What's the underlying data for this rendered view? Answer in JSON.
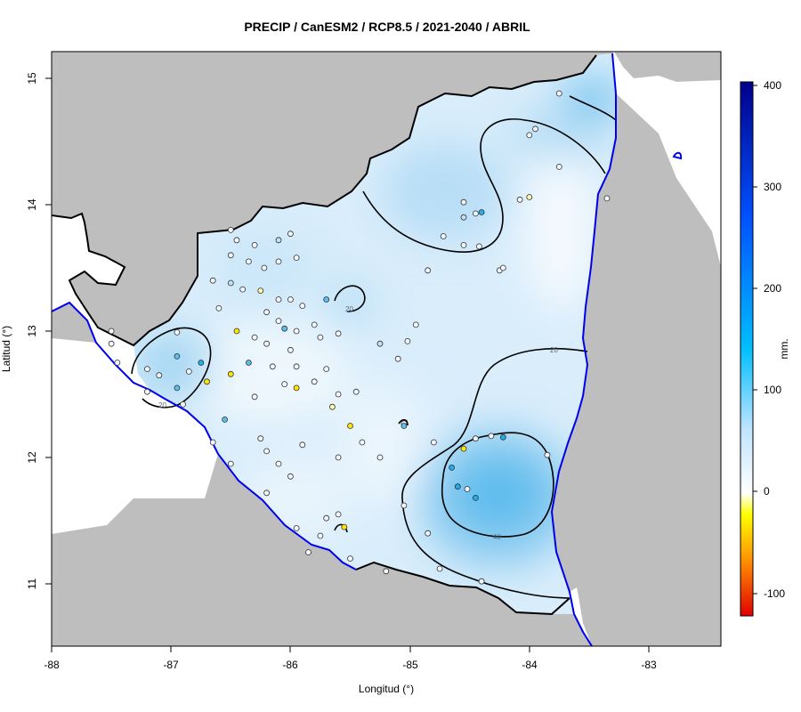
{
  "title": "PRECIP / CanESM2 / RCP8.5 / 2021-2040 / ABRIL",
  "x_axis": {
    "label": "Longitud (°)",
    "ticks": [
      "-88",
      "-87",
      "-86",
      "-85",
      "-84",
      "-83"
    ],
    "range": [
      -88,
      -82.4
    ]
  },
  "y_axis": {
    "label": "Latitud (°)",
    "ticks": [
      "11",
      "12",
      "13",
      "14",
      "15"
    ],
    "range": [
      10.5,
      15.2
    ]
  },
  "colorbar": {
    "unit": "mm.",
    "ticks": [
      "-100",
      "0",
      "100",
      "200",
      "300",
      "400"
    ],
    "range": [
      -120,
      400
    ],
    "colors": [
      "#e00000",
      "#ff8c00",
      "#ffff00",
      "#ffffff",
      "#bfe4ff",
      "#00bfff",
      "#0050ff",
      "#00008b"
    ]
  },
  "contour_labels": [
    "20",
    "20",
    "20",
    "40"
  ],
  "colors": {
    "land_gray": "#bebebe",
    "coast_blue": "#0000ee",
    "border_black": "#000000",
    "field_light": "#d6ecfb",
    "field_mid": "#9fd4f4",
    "field_strong": "#6cc3ef"
  },
  "chart_data": {
    "type": "heatmap",
    "variable": "PRECIP",
    "model": "CanESM2",
    "scenario": "RCP8.5",
    "period": "2021-2040",
    "month": "ABRIL",
    "unit": "mm.",
    "xlabel": "Longitud (°)",
    "ylabel": "Latitud (°)",
    "xlim": [
      -88,
      -82.4
    ],
    "ylim": [
      10.5,
      15.2
    ],
    "colorbar_range": [
      -120,
      400
    ],
    "contour_levels": [
      20,
      40
    ],
    "stations": [
      {
        "lon": -86.5,
        "lat": 13.8,
        "value": 5
      },
      {
        "lon": -86.45,
        "lat": 13.72,
        "value": 8
      },
      {
        "lon": -86.3,
        "lat": 13.68,
        "value": 10
      },
      {
        "lon": -86.1,
        "lat": 13.72,
        "value": 40
      },
      {
        "lon": -86.0,
        "lat": 13.77,
        "value": 10
      },
      {
        "lon": -86.5,
        "lat": 13.6,
        "value": 20
      },
      {
        "lon": -86.35,
        "lat": 13.55,
        "value": 10
      },
      {
        "lon": -86.22,
        "lat": 13.5,
        "value": 12
      },
      {
        "lon": -86.1,
        "lat": 13.55,
        "value": 8
      },
      {
        "lon": -85.95,
        "lat": 13.58,
        "value": 10
      },
      {
        "lon": -86.65,
        "lat": 13.4,
        "value": 20
      },
      {
        "lon": -86.5,
        "lat": 13.38,
        "value": 60
      },
      {
        "lon": -86.4,
        "lat": 13.33,
        "value": 10
      },
      {
        "lon": -86.25,
        "lat": 13.32,
        "value": -10
      },
      {
        "lon": -86.1,
        "lat": 13.25,
        "value": 10
      },
      {
        "lon": -86.0,
        "lat": 13.25,
        "value": 15
      },
      {
        "lon": -85.9,
        "lat": 13.2,
        "value": 10
      },
      {
        "lon": -85.7,
        "lat": 13.25,
        "value": 100
      },
      {
        "lon": -86.6,
        "lat": 13.18,
        "value": 5
      },
      {
        "lon": -86.2,
        "lat": 13.15,
        "value": 10
      },
      {
        "lon": -86.1,
        "lat": 13.08,
        "value": 10
      },
      {
        "lon": -86.05,
        "lat": 13.02,
        "value": 120
      },
      {
        "lon": -85.95,
        "lat": 13.0,
        "value": 10
      },
      {
        "lon": -85.8,
        "lat": 13.05,
        "value": 8
      },
      {
        "lon": -86.45,
        "lat": 13.0,
        "value": -40
      },
      {
        "lon": -86.3,
        "lat": 12.95,
        "value": 10
      },
      {
        "lon": -86.2,
        "lat": 12.9,
        "value": 10
      },
      {
        "lon": -86.0,
        "lat": 12.85,
        "value": 8
      },
      {
        "lon": -85.75,
        "lat": 12.95,
        "value": 10
      },
      {
        "lon": -85.6,
        "lat": 12.98,
        "value": 8
      },
      {
        "lon": -86.35,
        "lat": 12.75,
        "value": 80
      },
      {
        "lon": -86.15,
        "lat": 12.72,
        "value": 10
      },
      {
        "lon": -85.95,
        "lat": 12.72,
        "value": 10
      },
      {
        "lon": -85.7,
        "lat": 12.7,
        "value": 10
      },
      {
        "lon": -86.5,
        "lat": 12.66,
        "value": -25
      },
      {
        "lon": -86.05,
        "lat": 12.58,
        "value": 10
      },
      {
        "lon": -85.95,
        "lat": 12.55,
        "value": -20
      },
      {
        "lon": -85.8,
        "lat": 12.6,
        "value": 15
      },
      {
        "lon": -85.6,
        "lat": 12.5,
        "value": 8
      },
      {
        "lon": -85.45,
        "lat": 12.52,
        "value": 10
      },
      {
        "lon": -86.3,
        "lat": 12.48,
        "value": 10
      },
      {
        "lon": -85.65,
        "lat": 12.4,
        "value": -10
      },
      {
        "lon": -85.5,
        "lat": 12.25,
        "value": -30
      },
      {
        "lon": -85.05,
        "lat": 12.27,
        "value": 20
      },
      {
        "lon": -85.05,
        "lat": 12.25,
        "value": 120
      },
      {
        "lon": -86.25,
        "lat": 12.15,
        "value": 10
      },
      {
        "lon": -86.2,
        "lat": 12.05,
        "value": 10
      },
      {
        "lon": -86.1,
        "lat": 11.95,
        "value": 10
      },
      {
        "lon": -86.2,
        "lat": 11.72,
        "value": 10
      },
      {
        "lon": -86.0,
        "lat": 11.85,
        "value": 8
      },
      {
        "lon": -85.9,
        "lat": 12.1,
        "value": 10
      },
      {
        "lon": -85.6,
        "lat": 12.0,
        "value": 10
      },
      {
        "lon": -85.4,
        "lat": 12.12,
        "value": 10
      },
      {
        "lon": -85.25,
        "lat": 12.0,
        "value": 10
      },
      {
        "lon": -84.8,
        "lat": 12.12,
        "value": 10
      },
      {
        "lon": -84.55,
        "lat": 12.07,
        "value": -30
      },
      {
        "lon": -84.45,
        "lat": 12.15,
        "value": 10
      },
      {
        "lon": -84.32,
        "lat": 12.17,
        "value": 10
      },
      {
        "lon": -84.22,
        "lat": 12.16,
        "value": 200
      },
      {
        "lon": -84.65,
        "lat": 11.92,
        "value": 150
      },
      {
        "lon": -84.6,
        "lat": 11.77,
        "value": 150
      },
      {
        "lon": -84.52,
        "lat": 11.75,
        "value": 20
      },
      {
        "lon": -84.45,
        "lat": 11.68,
        "value": 180
      },
      {
        "lon": -85.05,
        "lat": 11.62,
        "value": 10
      },
      {
        "lon": -84.85,
        "lat": 11.4,
        "value": 15
      },
      {
        "lon": -84.75,
        "lat": 11.12,
        "value": 10
      },
      {
        "lon": -84.4,
        "lat": 11.02,
        "value": 10
      },
      {
        "lon": -85.55,
        "lat": 11.45,
        "value": -35
      },
      {
        "lon": -85.6,
        "lat": 11.55,
        "value": 10
      },
      {
        "lon": -85.7,
        "lat": 11.52,
        "value": 10
      },
      {
        "lon": -85.75,
        "lat": 11.38,
        "value": 10
      },
      {
        "lon": -85.5,
        "lat": 11.2,
        "value": 10
      },
      {
        "lon": -85.2,
        "lat": 11.1,
        "value": 10
      },
      {
        "lon": -85.95,
        "lat": 11.44,
        "value": 10
      },
      {
        "lon": -85.85,
        "lat": 11.25,
        "value": 10
      },
      {
        "lon": -86.95,
        "lat": 12.8,
        "value": 100
      },
      {
        "lon": -86.85,
        "lat": 12.68,
        "value": 15
      },
      {
        "lon": -86.75,
        "lat": 12.75,
        "value": 140
      },
      {
        "lon": -86.95,
        "lat": 12.55,
        "value": 100
      },
      {
        "lon": -86.7,
        "lat": 12.6,
        "value": -40
      },
      {
        "lon": -87.1,
        "lat": 12.65,
        "value": 10
      },
      {
        "lon": -87.2,
        "lat": 12.7,
        "value": 10
      },
      {
        "lon": -87.45,
        "lat": 12.75,
        "value": 10
      },
      {
        "lon": -87.2,
        "lat": 12.52,
        "value": 10
      },
      {
        "lon": -86.9,
        "lat": 12.42,
        "value": 10
      },
      {
        "lon": -87.5,
        "lat": 12.9,
        "value": 10
      },
      {
        "lon": -87.5,
        "lat": 13.0,
        "value": 10
      },
      {
        "lon": -86.95,
        "lat": 12.99,
        "value": 10
      },
      {
        "lon": -86.55,
        "lat": 12.3,
        "value": 80
      },
      {
        "lon": -86.65,
        "lat": 12.12,
        "value": 10
      },
      {
        "lon": -86.5,
        "lat": 11.95,
        "value": 10
      },
      {
        "lon": -84.55,
        "lat": 14.02,
        "value": 10
      },
      {
        "lon": -84.55,
        "lat": 13.9,
        "value": 60
      },
      {
        "lon": -84.45,
        "lat": 13.93,
        "value": 15
      },
      {
        "lon": -84.4,
        "lat": 13.94,
        "value": 150
      },
      {
        "lon": -84.08,
        "lat": 14.04,
        "value": 8
      },
      {
        "lon": -84.0,
        "lat": 14.06,
        "value": -15
      },
      {
        "lon": -84.0,
        "lat": 14.55,
        "value": 10
      },
      {
        "lon": -83.95,
        "lat": 14.6,
        "value": 10
      },
      {
        "lon": -83.75,
        "lat": 14.3,
        "value": 10
      },
      {
        "lon": -83.35,
        "lat": 14.05,
        "value": 10
      },
      {
        "lon": -83.75,
        "lat": 14.88,
        "value": 15
      },
      {
        "lon": -84.72,
        "lat": 13.75,
        "value": 10
      },
      {
        "lon": -84.55,
        "lat": 13.68,
        "value": 15
      },
      {
        "lon": -84.42,
        "lat": 13.67,
        "value": 10
      },
      {
        "lon": -84.85,
        "lat": 13.48,
        "value": 10
      },
      {
        "lon": -84.25,
        "lat": 13.48,
        "value": 10
      },
      {
        "lon": -84.22,
        "lat": 13.5,
        "value": 10
      },
      {
        "lon": -84.95,
        "lat": 13.05,
        "value": 10
      },
      {
        "lon": -85.25,
        "lat": 12.9,
        "value": 40
      },
      {
        "lon": -85.02,
        "lat": 12.92,
        "value": 10
      },
      {
        "lon": -85.1,
        "lat": 12.78,
        "value": 10
      },
      {
        "lon": -83.85,
        "lat": 12.02,
        "value": 10
      }
    ]
  }
}
